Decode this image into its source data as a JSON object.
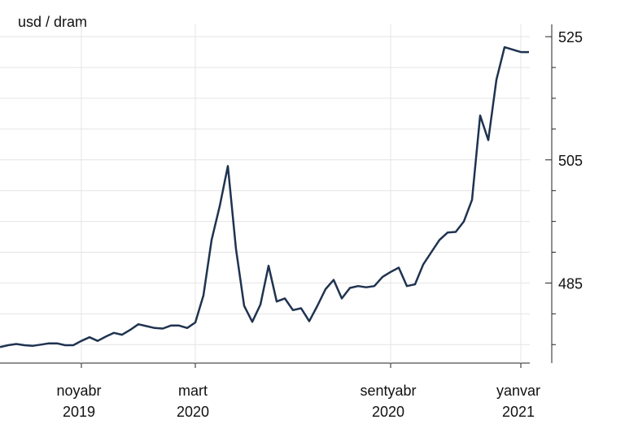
{
  "chart_data": {
    "type": "line",
    "title": "usd / dram",
    "categories": [
      null,
      null,
      null,
      null,
      null,
      null,
      null,
      null,
      null,
      null,
      "noyabr\n2019",
      null,
      null,
      null,
      null,
      null,
      null,
      null,
      null,
      null,
      null,
      null,
      null,
      null,
      "mart\n2020",
      null,
      null,
      null,
      null,
      null,
      null,
      null,
      null,
      null,
      null,
      null,
      null,
      null,
      null,
      null,
      null,
      null,
      null,
      null,
      null,
      null,
      null,
      null,
      "sentyabr\n2020",
      null,
      null,
      null,
      null,
      null,
      null,
      null,
      null,
      null,
      null,
      null,
      null,
      null,
      null,
      null,
      "yanvar\n2021",
      null
    ],
    "values": [
      474.6,
      474.9,
      475.1,
      474.9,
      474.8,
      475.0,
      475.2,
      475.2,
      474.9,
      474.9,
      475.6,
      476.2,
      475.6,
      476.3,
      476.9,
      476.6,
      477.4,
      478.3,
      478.0,
      477.7,
      477.6,
      478.1,
      478.1,
      477.7,
      478.6,
      483.0,
      492.0,
      497.5,
      504.0,
      490.5,
      481.3,
      478.7,
      481.5,
      487.8,
      482.0,
      482.5,
      480.6,
      480.9,
      478.8,
      481.3,
      484.0,
      485.5,
      482.5,
      484.2,
      484.5,
      484.3,
      484.5,
      486.0,
      486.8,
      487.5,
      484.5,
      484.8,
      488.0,
      490.0,
      492.0,
      493.2,
      493.3,
      495.0,
      498.5,
      512.2,
      508.2,
      518.0,
      523.3,
      522.9,
      522.5,
      522.5
    ],
    "color": "#1f3350",
    "ylim": [
      472,
      527
    ],
    "yticks": [
      485,
      505,
      525
    ],
    "yticks_minor": [
      475,
      480,
      490,
      495,
      500,
      510,
      515,
      520
    ],
    "grid": true
  }
}
